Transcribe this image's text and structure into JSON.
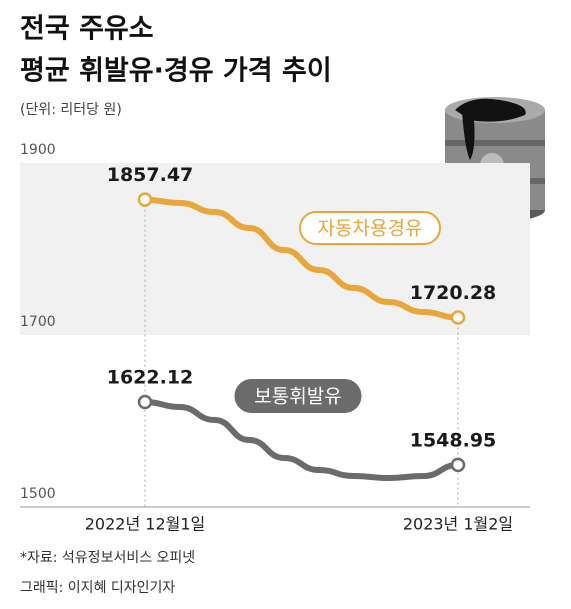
{
  "chart_data": {
    "type": "line",
    "title": [
      "전국 주유소",
      "평균 휘발유·경유 가격 추이"
    ],
    "subtitle": "(단위: 리터당 원)",
    "categories": [
      "2022년 12월1일",
      null,
      null,
      null,
      null,
      null,
      null,
      null,
      null,
      "2023년 1월2일"
    ],
    "series": [
      {
        "name": "자동차용경유",
        "color": "#e9a63a",
        "values": [
          1857.47,
          1853.5,
          1843,
          1824.4,
          1798.8,
          1775.6,
          1754.7,
          1738.4,
          1726.7,
          1720.28
        ]
      },
      {
        "name": "보통휘발유",
        "color": "#6b6b6b",
        "values": [
          1622.12,
          1616.3,
          1601.2,
          1577.9,
          1557,
          1543,
          1536,
          1533.7,
          1536,
          1548.95
        ]
      }
    ],
    "ylim": [
      1500,
      1900
    ],
    "yticks": [
      1500,
      1700,
      1900
    ],
    "notes": [
      "*자료: 석유정보서비스 오피넷",
      "그래픽: 이지혜 디자인기자"
    ]
  }
}
